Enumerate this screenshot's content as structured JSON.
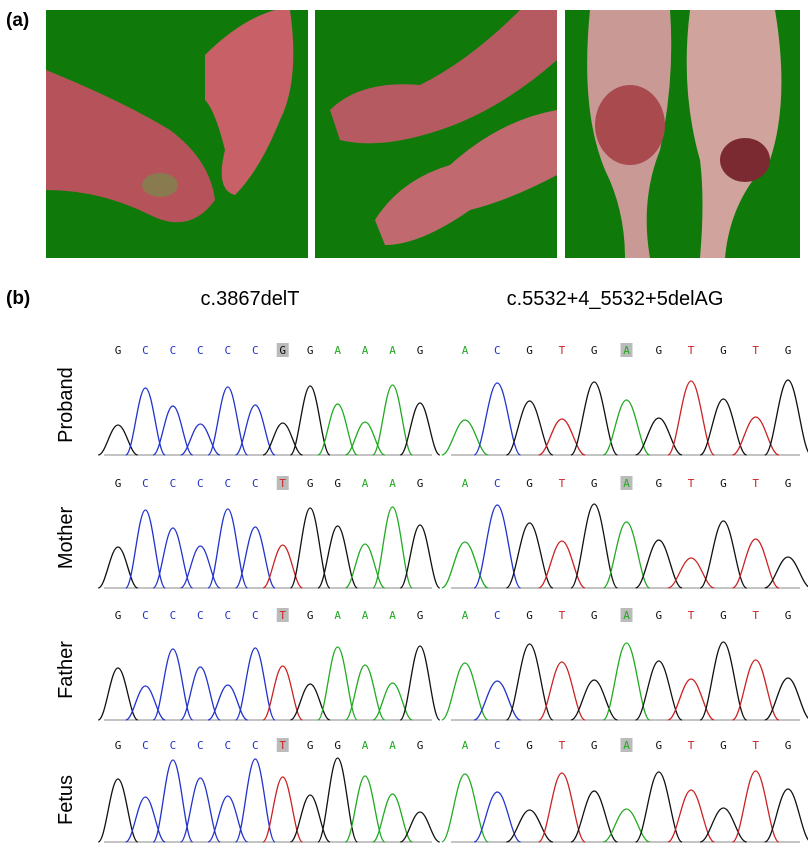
{
  "panel_a": {
    "label": "(a)"
  },
  "panel_b": {
    "label": "(b)",
    "mutations": [
      "c.3867delT",
      "c.5532+4_5532+5delAG"
    ],
    "rows": [
      {
        "label": "Proband",
        "left": [
          "G",
          "C",
          "C",
          "C",
          "C",
          "C",
          "G",
          "G",
          "A",
          "A",
          "A",
          "G"
        ],
        "right": [
          "A",
          "C",
          "G",
          "T",
          "G",
          "A",
          "G",
          "T",
          "G",
          "T",
          "G"
        ]
      },
      {
        "label": "Mother",
        "left": [
          "G",
          "C",
          "C",
          "C",
          "C",
          "C",
          "T",
          "G",
          "G",
          "A",
          "A",
          "G"
        ],
        "right": [
          "A",
          "C",
          "G",
          "T",
          "G",
          "A",
          "G",
          "T",
          "G",
          "T",
          "G"
        ]
      },
      {
        "label": "Father",
        "left": [
          "G",
          "C",
          "C",
          "C",
          "C",
          "C",
          "T",
          "G",
          "A",
          "A",
          "A",
          "G"
        ],
        "right": [
          "A",
          "C",
          "G",
          "T",
          "G",
          "A",
          "G",
          "T",
          "G",
          "T",
          "G"
        ]
      },
      {
        "label": "Fetus",
        "left": [
          "G",
          "C",
          "C",
          "C",
          "C",
          "C",
          "T",
          "G",
          "G",
          "A",
          "A",
          "G"
        ],
        "right": [
          "A",
          "C",
          "G",
          "T",
          "G",
          "A",
          "G",
          "T",
          "G",
          "T",
          "G"
        ]
      }
    ]
  }
}
